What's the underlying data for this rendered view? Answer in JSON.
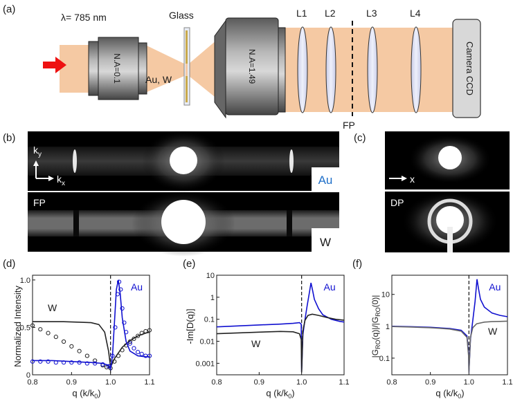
{
  "panels": {
    "a": "(a)",
    "b": "(b)",
    "c": "(c)",
    "d": "(d)",
    "e": "(e)",
    "f": "(f)"
  },
  "setup": {
    "wavelength": "λ= 785 nm",
    "obj1": "N.A=0.1",
    "obj2": "N.A=1.49",
    "glass": "Glass",
    "sample": "Au, W",
    "lenses": [
      "L1",
      "L2",
      "L3",
      "L4"
    ],
    "fp": "FP",
    "camera": "Camera CCD"
  },
  "images": {
    "ky": "k",
    "ky_sub": "y",
    "kx": "k",
    "kx_sub": "x",
    "au": "Au",
    "w": "W",
    "fp": "FP",
    "x": "x",
    "dp": "DP"
  },
  "colors": {
    "beam": "#f5c9a3",
    "au": "#1010d0",
    "w": "#222222",
    "arrow": "#ee1111",
    "lens": "#d9dcf2"
  },
  "chart_data": [
    {
      "type": "line",
      "panel": "d",
      "ylabel": "Normalized Intensity",
      "xlabel": "q (k/k0)",
      "xlim": [
        0.8,
        1.1
      ],
      "ylim": [
        0,
        1.05
      ],
      "xticks": [
        "0.8",
        "0.9",
        "1.0",
        "1.1"
      ],
      "yticks": [
        "0",
        "0.5",
        "1.0"
      ],
      "dashed_x": 1.0,
      "series": [
        {
          "name": "W",
          "kind": "theory",
          "x": [
            0.8,
            0.84,
            0.88,
            0.92,
            0.95,
            0.97,
            0.985,
            0.995,
            1.0,
            1.01,
            1.03,
            1.05,
            1.07,
            1.09,
            1.1
          ],
          "y": [
            0.56,
            0.56,
            0.56,
            0.555,
            0.55,
            0.53,
            0.45,
            0.25,
            0.08,
            0.17,
            0.29,
            0.36,
            0.41,
            0.44,
            0.45
          ]
        },
        {
          "name": "W",
          "kind": "data",
          "x": [
            0.8,
            0.82,
            0.84,
            0.86,
            0.88,
            0.9,
            0.92,
            0.94,
            0.96,
            0.98,
            0.99,
            1.0,
            1.01,
            1.02,
            1.03,
            1.04,
            1.05,
            1.06,
            1.07,
            1.08,
            1.09,
            1.1
          ],
          "y": [
            0.52,
            0.48,
            0.44,
            0.4,
            0.35,
            0.3,
            0.25,
            0.2,
            0.15,
            0.1,
            0.08,
            0.07,
            0.14,
            0.2,
            0.26,
            0.31,
            0.35,
            0.38,
            0.41,
            0.44,
            0.46,
            0.47
          ]
        },
        {
          "name": "Au",
          "kind": "theory",
          "x": [
            0.8,
            0.85,
            0.9,
            0.95,
            0.98,
            0.995,
            1.0,
            1.005,
            1.01,
            1.015,
            1.02,
            1.025,
            1.03,
            1.04,
            1.05,
            1.07,
            1.09,
            1.1
          ],
          "y": [
            0.15,
            0.15,
            0.14,
            0.13,
            0.12,
            0.1,
            0.06,
            0.2,
            0.55,
            0.9,
            1.0,
            0.85,
            0.6,
            0.35,
            0.25,
            0.2,
            0.19,
            0.19
          ]
        },
        {
          "name": "Au",
          "kind": "data",
          "x": [
            0.8,
            0.82,
            0.84,
            0.86,
            0.88,
            0.9,
            0.92,
            0.94,
            0.96,
            0.98,
            0.995,
            1.005,
            1.012,
            1.018,
            1.022,
            1.026,
            1.03,
            1.035,
            1.04,
            1.05,
            1.06,
            1.07,
            1.08,
            1.09,
            1.1
          ],
          "y": [
            0.14,
            0.14,
            0.14,
            0.13,
            0.13,
            0.13,
            0.13,
            0.12,
            0.12,
            0.11,
            0.09,
            0.2,
            0.5,
            0.85,
            0.98,
            0.9,
            0.7,
            0.55,
            0.45,
            0.33,
            0.28,
            0.24,
            0.22,
            0.2,
            0.2
          ]
        }
      ],
      "labels": {
        "w": "W",
        "au": "Au"
      }
    },
    {
      "type": "line",
      "panel": "e",
      "ylabel": "-Im[D(q)]",
      "xlabel": "q (k/k0)",
      "scale": "log",
      "xlim": [
        0.8,
        1.1
      ],
      "ylim": [
        0.0003,
        10
      ],
      "xticks": [
        "0.8",
        "0.9",
        "1.0",
        "1.1"
      ],
      "yticks": [
        "0.001",
        "0.01",
        "0.1",
        "1",
        "10"
      ],
      "dashed_x": 1.0,
      "series": [
        {
          "name": "Au",
          "x": [
            0.8,
            0.85,
            0.9,
            0.95,
            0.98,
            0.995,
            0.999,
            1.0,
            1.003,
            1.008,
            1.013,
            1.018,
            1.022,
            1.026,
            1.03,
            1.04,
            1.05,
            1.07,
            1.09,
            1.1
          ],
          "y": [
            0.045,
            0.05,
            0.055,
            0.06,
            0.065,
            0.07,
            0.06,
            0.0004,
            0.02,
            0.1,
            0.4,
            1.5,
            4.5,
            2.0,
            0.8,
            0.3,
            0.16,
            0.1,
            0.08,
            0.075
          ]
        },
        {
          "name": "W",
          "x": [
            0.8,
            0.85,
            0.9,
            0.95,
            0.98,
            0.995,
            0.999,
            1.0,
            1.003,
            1.008,
            1.015,
            1.025,
            1.04,
            1.06,
            1.08,
            1.1
          ],
          "y": [
            0.022,
            0.024,
            0.026,
            0.028,
            0.027,
            0.022,
            0.012,
            0.0004,
            0.03,
            0.09,
            0.15,
            0.17,
            0.15,
            0.12,
            0.1,
            0.09
          ]
        }
      ],
      "labels": {
        "w": "W",
        "au": "Au"
      }
    },
    {
      "type": "line",
      "panel": "f",
      "ylabel": "|GRO(q)|/|GRO(0)|",
      "xlabel": "q (k/k0)",
      "scale": "log",
      "xlim": [
        0.8,
        1.1
      ],
      "ylim": [
        0.03,
        40
      ],
      "xticks": [
        "0.8",
        "0.9",
        "1.0",
        "1.1"
      ],
      "yticks": [
        "0.1",
        "1",
        "10"
      ],
      "dashed_x": 1.0,
      "series": [
        {
          "name": "Au",
          "x": [
            0.8,
            0.85,
            0.9,
            0.95,
            0.98,
            0.995,
            0.999,
            1.0,
            1.004,
            1.01,
            1.016,
            1.021,
            1.025,
            1.03,
            1.04,
            1.06,
            1.08,
            1.1
          ],
          "y": [
            1.0,
            0.97,
            0.93,
            0.85,
            0.75,
            0.5,
            0.15,
            0.035,
            0.4,
            1.5,
            6,
            30,
            15,
            7,
            4,
            2.6,
            2.2,
            2.0
          ]
        },
        {
          "name": "W",
          "x": [
            0.8,
            0.85,
            0.9,
            0.95,
            0.98,
            0.995,
            0.999,
            1.0,
            1.004,
            1.01,
            1.02,
            1.04,
            1.06,
            1.08,
            1.1
          ],
          "y": [
            0.98,
            0.95,
            0.9,
            0.82,
            0.7,
            0.45,
            0.12,
            0.035,
            0.45,
            0.9,
            1.2,
            1.35,
            1.4,
            1.42,
            1.45
          ]
        }
      ],
      "labels": {
        "w": "W",
        "au": "Au"
      }
    }
  ],
  "plot_labels": {
    "xlabel_main": "q (k/k",
    "xlabel_sub": "0",
    "xlabel_end": ")",
    "f_ylabel": "|G",
    "f_sub": "RO",
    "f_mid": "(q)|/|G",
    "f_sub2": "RO",
    "f_end": "(0)|"
  }
}
